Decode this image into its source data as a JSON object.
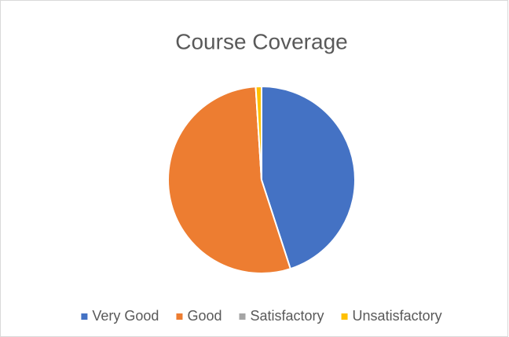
{
  "chart_data": {
    "type": "pie",
    "title": "Course Coverage",
    "categories": [
      "Very Good",
      "Good",
      "Satisfactory",
      "Unsatisfactory"
    ],
    "values": [
      45,
      54,
      0,
      1
    ],
    "colors": [
      "#4472c4",
      "#ed7d31",
      "#a5a5a5",
      "#ffc000"
    ],
    "legend": "bottom"
  }
}
